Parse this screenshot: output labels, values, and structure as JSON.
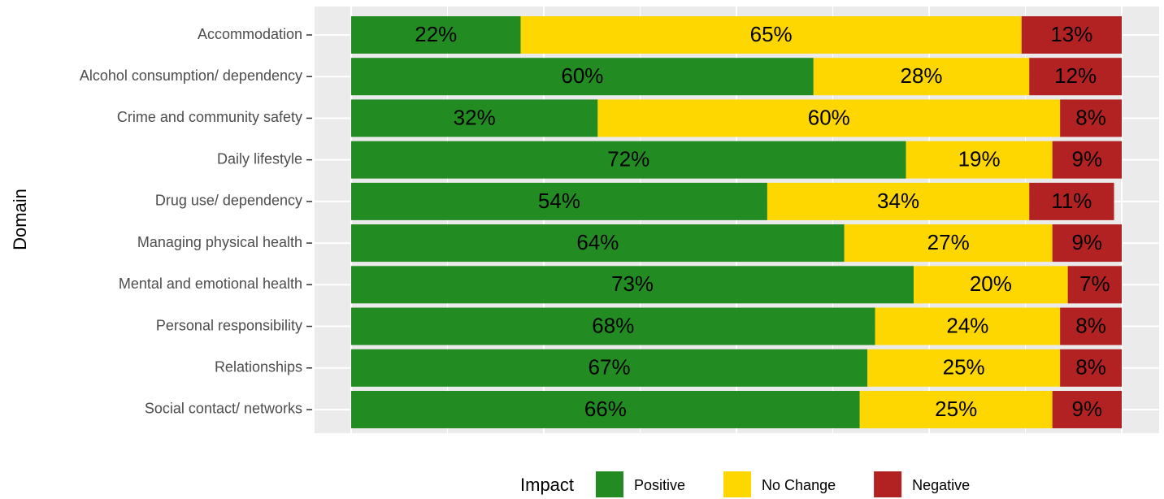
{
  "chart_data": {
    "type": "stacked_barh",
    "y_label": "Domain",
    "legend_title": "Impact",
    "legend": "bottom",
    "categories": [
      "Accommodation",
      "Alcohol consumption/ dependency",
      "Crime and community safety",
      "Daily lifestyle",
      "Drug use/ dependency",
      "Managing physical health",
      "Mental and emotional health",
      "Personal responsibility",
      "Relationships",
      "Social contact/ networks"
    ],
    "series": [
      {
        "name": "Positive",
        "color": "#228b22",
        "values": [
          22,
          60,
          32,
          72,
          54,
          64,
          73,
          68,
          67,
          66
        ],
        "value_labels": [
          "22%",
          "60%",
          "32%",
          "72%",
          "54%",
          "64%",
          "73%",
          "68%",
          "67%",
          "66%"
        ]
      },
      {
        "name": "No Change",
        "color": "#ffd700",
        "values": [
          65,
          28,
          60,
          19,
          34,
          27,
          20,
          24,
          25,
          25
        ],
        "value_labels": [
          "65%",
          "28%",
          "60%",
          "19%",
          "34%",
          "27%",
          "20%",
          "24%",
          "25%",
          "25%"
        ]
      },
      {
        "name": "Negative",
        "color": "#b22222",
        "values": [
          13,
          12,
          8,
          9,
          11,
          9,
          7,
          8,
          8,
          9
        ],
        "value_labels": [
          "13%",
          "12%",
          "8%",
          "9%",
          "11%",
          "9%",
          "7%",
          "8%",
          "8%",
          "9%"
        ]
      }
    ],
    "xlim": [
      0,
      100
    ],
    "xticks": [
      0,
      25,
      50,
      75,
      100
    ],
    "grid": true
  }
}
